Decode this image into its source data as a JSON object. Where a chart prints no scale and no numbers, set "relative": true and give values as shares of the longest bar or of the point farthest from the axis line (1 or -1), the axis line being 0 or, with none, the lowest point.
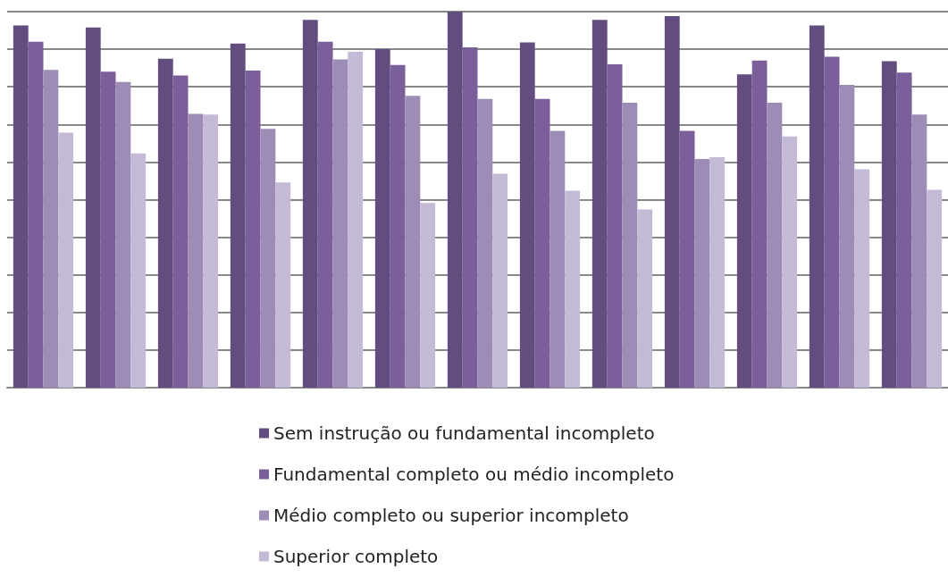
{
  "chart_data": {
    "type": "bar",
    "relative": true,
    "grid": "y",
    "legend": "bottom",
    "categories": [
      null,
      null,
      null,
      null,
      null,
      null,
      null,
      null,
      null,
      null,
      null,
      null,
      null
    ],
    "series": [
      {
        "name": "Sem instrução ou fundamental incompleto",
        "color": "#634c80",
        "values": [
          0.963,
          0.958,
          0.875,
          0.915,
          0.978,
          0.9,
          1,
          0.918,
          0.978,
          0.988,
          0.833,
          0.963,
          0.868
        ]
      },
      {
        "name": "Fundamental completo ou médio incompleto",
        "color": "#7a5f9a",
        "values": [
          0.92,
          0.84,
          0.83,
          0.843,
          0.92,
          0.858,
          0.905,
          0.768,
          0.86,
          0.683,
          0.87,
          0.88,
          0.838
        ]
      },
      {
        "name": "Médio completo ou superior incompleto",
        "color": "#9d8cb6",
        "values": [
          0.845,
          0.813,
          0.728,
          0.688,
          0.873,
          0.776,
          0.768,
          0.683,
          0.758,
          0.608,
          0.758,
          0.805,
          0.726
        ]
      },
      {
        "name": "Superior completo",
        "color": "#c4bad5",
        "values": [
          0.678,
          0.623,
          0.726,
          0.546,
          0.893,
          0.491,
          0.569,
          0.524,
          0.474,
          0.613,
          0.668,
          0.581,
          0.526
        ]
      }
    ]
  }
}
